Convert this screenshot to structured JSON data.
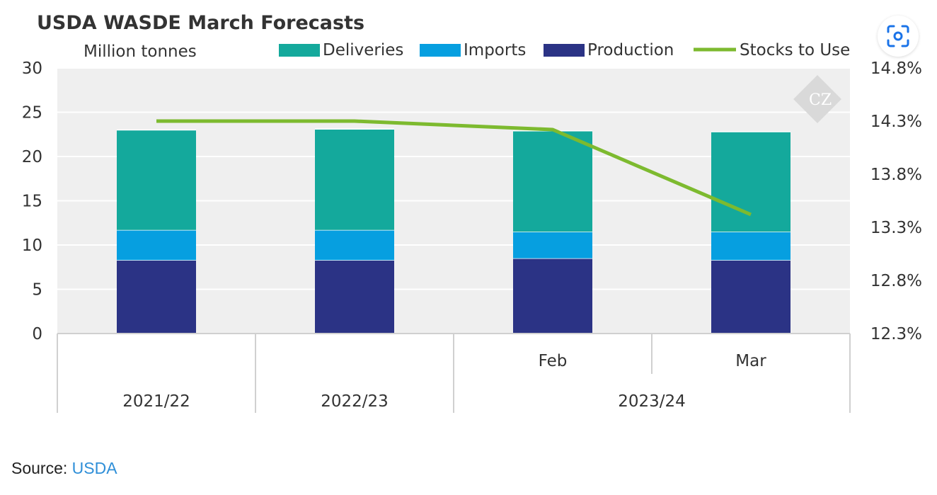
{
  "chart_data": {
    "type": "bar",
    "stacked": true,
    "title": "USDA WASDE March Forecasts",
    "y_unit_label": "Million tonnes",
    "categories": [
      {
        "label": "",
        "group": "2021/22"
      },
      {
        "label": "",
        "group": "2022/23"
      },
      {
        "label": "Feb",
        "group": "2023/24"
      },
      {
        "label": "Mar",
        "group": "2023/24"
      }
    ],
    "groups": [
      "2021/22",
      "2022/23",
      "2023/24"
    ],
    "series": [
      {
        "name": "Production",
        "color": "#2b3385",
        "values": [
          8.3,
          8.3,
          8.5,
          8.3
        ]
      },
      {
        "name": "Imports",
        "color": "#069fe0",
        "values": [
          3.4,
          3.4,
          3.0,
          3.2
        ]
      },
      {
        "name": "Deliveries",
        "color": "#14a99c",
        "values": [
          11.3,
          11.4,
          11.4,
          11.3
        ]
      }
    ],
    "line_series": {
      "name": "Stocks to Use",
      "color": "#7dba2f",
      "axis": "right",
      "values": [
        14.3,
        14.3,
        14.22,
        13.42
      ]
    },
    "legend_order": [
      "Deliveries",
      "Imports",
      "Production",
      "Stocks to Use"
    ],
    "ylim": [
      0,
      30
    ],
    "yticks": [
      "0",
      "5",
      "10",
      "15",
      "20",
      "25",
      "30"
    ],
    "y2lim": [
      12.3,
      14.8
    ],
    "y2ticks": [
      "12.3%",
      "12.8%",
      "13.3%",
      "13.8%",
      "14.3%",
      "14.8%"
    ],
    "grid": true,
    "legend_position": "top"
  },
  "source": {
    "label": "Source:",
    "link_text": "USDA"
  },
  "watermark": {
    "text": "CZ"
  },
  "icons": {
    "lens": "lens-scan-icon"
  }
}
